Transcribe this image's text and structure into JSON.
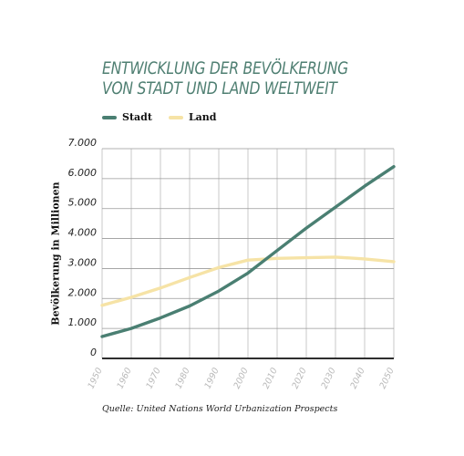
{
  "chart_data": {
    "type": "line",
    "title": [
      "ENTWICKLUNG DER BEVÖLKERUNG",
      "VON STADT UND LAND WELTWEIT"
    ],
    "xlabel": "",
    "ylabel": "Bevölkerung in Millionen",
    "x": [
      1950,
      1960,
      1970,
      1980,
      1990,
      2000,
      2010,
      2020,
      2030,
      2040,
      2050
    ],
    "x_tick_labels": [
      "1950",
      "1960",
      "1970",
      "1980",
      "1990",
      "2000",
      "2010",
      "2020",
      "2030",
      "2040",
      "2050"
    ],
    "y_ticks": [
      0,
      1000,
      2000,
      3000,
      4000,
      5000,
      6000,
      7000
    ],
    "y_tick_labels": [
      "0",
      "1.000",
      "2.000",
      "3.000",
      "4.000",
      "5.000",
      "6.000",
      "7.000"
    ],
    "ylim": [
      0,
      7000
    ],
    "xlim": [
      1950,
      2050
    ],
    "grid": "vertical",
    "legend_position": "top-left",
    "series": [
      {
        "name": "Stadt",
        "color": "#4a7f72",
        "values": [
          730,
          1000,
          1350,
          1750,
          2250,
          2850,
          3600,
          4350,
          5050,
          5750,
          6400
        ]
      },
      {
        "name": "Land",
        "color": "#f6e3a6",
        "values": [
          1770,
          2040,
          2350,
          2700,
          3030,
          3280,
          3340,
          3360,
          3380,
          3320,
          3230
        ]
      }
    ],
    "source": "Quelle: United Nations World Urbanization Prospects"
  }
}
